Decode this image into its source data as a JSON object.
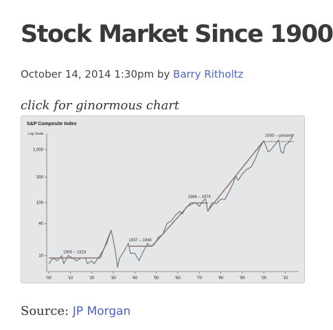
{
  "post": {
    "title": "Stock Market Since 1900",
    "date": "October 14, 2014 1:30pm",
    "by": "by",
    "author": "Barry Ritholtz",
    "caption": "click for ginormous chart",
    "source_label": "Source:",
    "source_link": "JP Morgan"
  },
  "colors": {
    "link": "#4a62c4",
    "chart_bg": "#e4e6e7",
    "index_line": "#6f7a7a",
    "trend_line": "#8a6a66"
  },
  "chart_data": {
    "type": "line",
    "title": "S&P Composite Index",
    "ylabel": "Log Scale",
    "yscale": "log",
    "ylim": [
      5,
      2000
    ],
    "xlim": [
      1900,
      2014
    ],
    "yticks": [
      10,
      40,
      100,
      300,
      1000
    ],
    "ytick_labels": [
      "10",
      "40",
      "100",
      "300",
      "1,000"
    ],
    "xticks": [
      1900,
      1910,
      1920,
      1930,
      1940,
      1950,
      1960,
      1970,
      1980,
      1990,
      2000,
      2010
    ],
    "xtick_labels": [
      "'00",
      "'10",
      "'20",
      "'30",
      "'40",
      "'50",
      "'60",
      "'70",
      "'80",
      "'90",
      "'00",
      "'10"
    ],
    "grid": false,
    "series": [
      {
        "x": [
          1900,
          1902,
          1904,
          1906,
          1907,
          1909,
          1911,
          1913,
          1915,
          1917,
          1918,
          1920,
          1921,
          1923,
          1925,
          1927,
          1929,
          1930,
          1931,
          1932,
          1933,
          1935,
          1937,
          1938,
          1940,
          1942,
          1944,
          1946,
          1947,
          1949,
          1951,
          1953,
          1955,
          1957,
          1959,
          1961,
          1962,
          1964,
          1966,
          1968,
          1970,
          1972,
          1973,
          1974,
          1976,
          1978,
          1980,
          1982,
          1984,
          1986,
          1987,
          1988,
          1990,
          1992,
          1994,
          1996,
          1998,
          2000,
          2001,
          2002,
          2003,
          2005,
          2007,
          2008,
          2009,
          2010,
          2012,
          2014
        ],
        "values": [
          7,
          9,
          8,
          10,
          7,
          10,
          9,
          8,
          9,
          9,
          7,
          8,
          7,
          9,
          12,
          17,
          30,
          20,
          12,
          6,
          9,
          12,
          17,
          11,
          11,
          8,
          12,
          17,
          15,
          16,
          22,
          25,
          40,
          45,
          58,
          68,
          60,
          82,
          90,
          100,
          85,
          110,
          115,
          68,
          100,
          95,
          115,
          115,
          165,
          240,
          320,
          260,
          340,
          420,
          460,
          650,
          1050,
          1450,
          1150,
          900,
          950,
          1200,
          1500,
          900,
          850,
          1200,
          1400,
          1950
        ]
      }
    ],
    "trendlines": [
      {
        "label": "1900 – 1924",
        "x": [
          1900,
          1924
        ],
        "values": [
          9,
          9
        ]
      },
      {
        "label": "1937 – 1948",
        "x": [
          1937,
          1948
        ],
        "values": [
          15,
          15
        ]
      },
      {
        "label": "1966 – 1974",
        "x": [
          1966,
          1974
        ],
        "values": [
          98,
          98
        ]
      },
      {
        "label": "2000 – present",
        "x": [
          2000,
          2014
        ],
        "values": [
          1400,
          1400
        ]
      }
    ],
    "secular_bull_lines": [
      {
        "x": [
          1924,
          1929
        ],
        "values": [
          9,
          30
        ]
      },
      {
        "x": [
          1948,
          1966
        ],
        "values": [
          15,
          98
        ]
      },
      {
        "x": [
          1974,
          2000
        ],
        "values": [
          70,
          1450
        ]
      }
    ]
  }
}
